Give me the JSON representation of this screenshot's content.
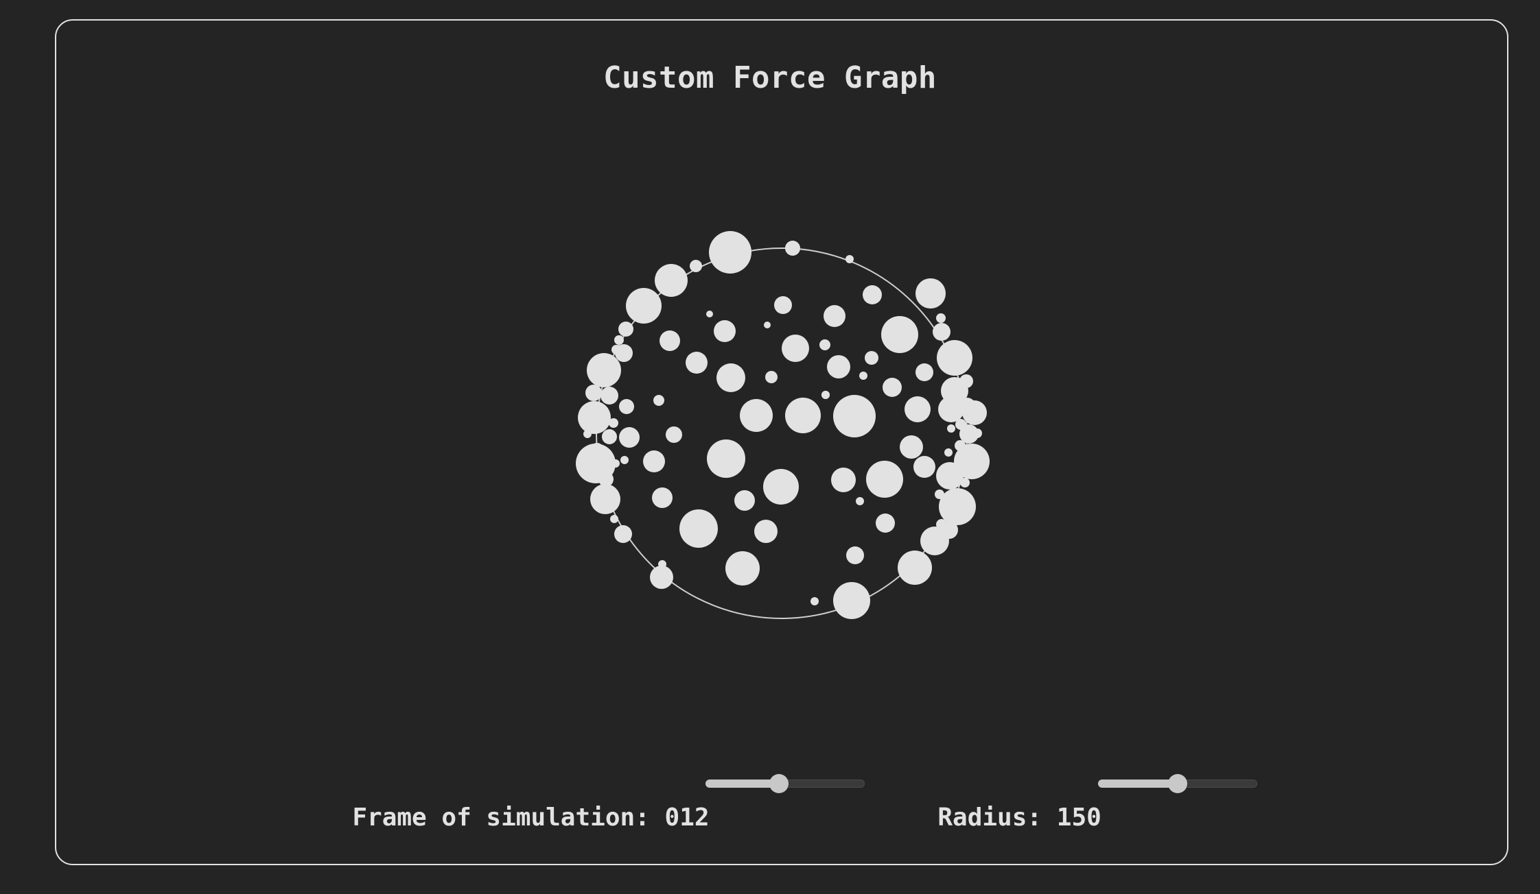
{
  "title": "Custom Force Graph",
  "controls": {
    "frame": {
      "label": "Frame of simulation:",
      "value": "012",
      "slider_fraction": 0.46
    },
    "radius": {
      "label": "Radius:",
      "value": "150",
      "slider_fraction": 0.5
    }
  },
  "colors": {
    "background": "#242424",
    "foreground": "#e2e2e2",
    "slider": "#c8c8c8"
  }
}
